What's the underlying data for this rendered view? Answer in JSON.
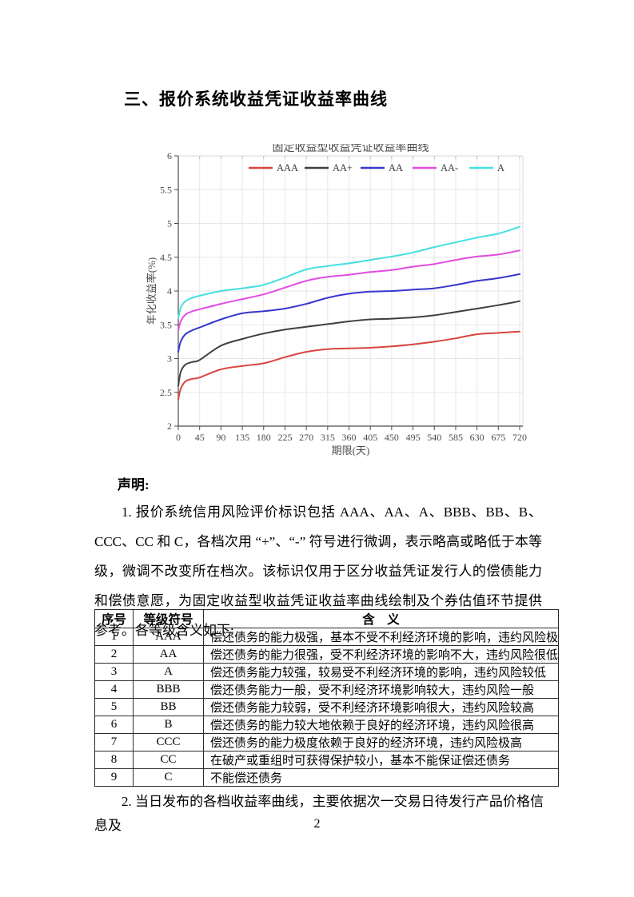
{
  "heading": "三、报价系统收益凭证收益率曲线",
  "declaration": {
    "label": "声明:",
    "paragraph1": "1. 报价系统信用风险评价标识包括 AAA、AA、A、BBB、BB、B、CCC、CC 和 C，各档次用 “+”、“-” 符号进行微调，表示略高或略低于本等级，微调不改变所在档次。该标识仅用于区分收益凭证发行人的偿债能力和偿债意愿，为固定收益型收益凭证收益率曲线绘制及个券估值环节提供参考。各等级含义如下:",
    "paragraph2": "2. 当日发布的各档收益率曲线，主要依据次一交易日待发行产品价格信息及"
  },
  "table": {
    "headers": [
      "序号",
      "等级符号",
      "含　义"
    ],
    "rows": [
      [
        "1",
        "AAA",
        "偿还债务的能力极强，基本不受不利经济环境的影响，违约风险极低"
      ],
      [
        "2",
        "AA",
        "偿还债务的能力很强，受不利经济环境的影响不大，违约风险很低"
      ],
      [
        "3",
        "A",
        "偿还债务能力较强，较易受不利经济环境的影响，违约风险较低"
      ],
      [
        "4",
        "BBB",
        "偿还债务能力一般，受不利经济环境影响较大，违约风险一般"
      ],
      [
        "5",
        "BB",
        "偿还债务能力较弱，受不利经济环境影响很大，违约风险较高"
      ],
      [
        "6",
        "B",
        "偿还债务的能力较大地依赖于良好的经济环境，违约风险很高"
      ],
      [
        "7",
        "CCC",
        "偿还债务的能力极度依赖于良好的经济环境，违约风险极高"
      ],
      [
        "8",
        "CC",
        "在破产或重组时可获得保护较小，基本不能保证偿还债务"
      ],
      [
        "9",
        "C",
        "不能偿还债务"
      ]
    ]
  },
  "page_number": "2",
  "chart_data": {
    "type": "line",
    "title": "固定收益型收益凭证收益率曲线",
    "xlabel": "期限(天)",
    "ylabel": "年化收益率(%)",
    "xlim": [
      0,
      730
    ],
    "ylim": [
      2,
      6
    ],
    "xticks": [
      0,
      45,
      90,
      135,
      180,
      225,
      270,
      315,
      360,
      405,
      450,
      495,
      540,
      585,
      630,
      675,
      720
    ],
    "yticks": [
      2,
      2.5,
      3,
      3.5,
      4,
      4.5,
      5,
      5.5,
      6
    ],
    "grid": true,
    "legend_position": "top-inside",
    "x": [
      0,
      5,
      15,
      30,
      45,
      90,
      135,
      180,
      225,
      270,
      315,
      360,
      405,
      450,
      495,
      540,
      585,
      630,
      675,
      720
    ],
    "series": [
      {
        "name": "AAA",
        "color": "#d8453e",
        "values": [
          2.4,
          2.55,
          2.66,
          2.7,
          2.72,
          2.84,
          2.89,
          2.93,
          3.02,
          3.1,
          3.14,
          3.15,
          3.16,
          3.18,
          3.21,
          3.25,
          3.3,
          3.36,
          3.38,
          3.4
        ]
      },
      {
        "name": "AA+",
        "color": "#3f3f3f",
        "values": [
          2.6,
          2.8,
          2.91,
          2.95,
          2.98,
          3.19,
          3.29,
          3.37,
          3.43,
          3.47,
          3.51,
          3.55,
          3.58,
          3.59,
          3.61,
          3.64,
          3.69,
          3.74,
          3.79,
          3.85
        ]
      },
      {
        "name": "AA",
        "color": "#3636cf",
        "values": [
          3.1,
          3.25,
          3.36,
          3.42,
          3.46,
          3.58,
          3.67,
          3.7,
          3.74,
          3.81,
          3.9,
          3.96,
          3.99,
          4.0,
          4.02,
          4.04,
          4.09,
          4.15,
          4.19,
          4.25
        ]
      },
      {
        "name": "AA-",
        "color": "#e14ce1",
        "values": [
          3.42,
          3.55,
          3.65,
          3.7,
          3.73,
          3.81,
          3.88,
          3.95,
          4.05,
          4.15,
          4.21,
          4.24,
          4.28,
          4.31,
          4.36,
          4.4,
          4.46,
          4.51,
          4.54,
          4.6
        ]
      },
      {
        "name": "A",
        "color": "#45dfe0",
        "values": [
          3.6,
          3.75,
          3.85,
          3.9,
          3.93,
          4.0,
          4.04,
          4.09,
          4.2,
          4.32,
          4.37,
          4.41,
          4.46,
          4.51,
          4.57,
          4.65,
          4.72,
          4.79,
          4.85,
          4.95
        ]
      }
    ]
  }
}
